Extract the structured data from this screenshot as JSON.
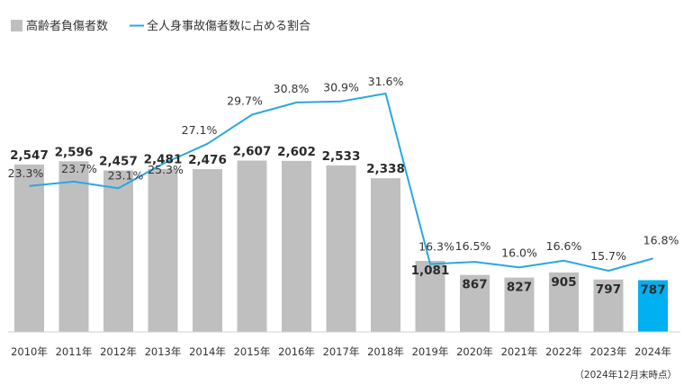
{
  "chart_data": {
    "type": "bar",
    "categories": [
      "2010年",
      "2011年",
      "2012年",
      "2013年",
      "2014年",
      "2015年",
      "2016年",
      "2017年",
      "2018年",
      "2019年",
      "2020年",
      "2021年",
      "2022年",
      "2023年",
      "2024年"
    ],
    "series": [
      {
        "name": "高齢者負傷者数",
        "type": "bar",
        "values": [
          2547,
          2596,
          2457,
          2481,
          2476,
          2607,
          2602,
          2533,
          2338,
          1081,
          867,
          827,
          905,
          797,
          787
        ],
        "labels": [
          "2,547",
          "2,596",
          "2,457",
          "2,481",
          "2,476",
          "2,607",
          "2,602",
          "2,533",
          "2,338",
          "1,081",
          "867",
          "827",
          "905",
          "797",
          "787"
        ],
        "color": "#bfbfbf",
        "highlight_color": "#00b0f0"
      },
      {
        "name": "全人身事故傷者数に占める割合",
        "type": "line",
        "values": [
          23.3,
          23.7,
          23.1,
          25.3,
          27.1,
          29.7,
          30.8,
          30.9,
          31.6,
          16.3,
          16.5,
          16.0,
          16.6,
          15.7,
          16.8
        ],
        "labels": [
          "23.3%",
          "23.7%",
          "23.1%",
          "25.3%",
          "27.1%",
          "29.7%",
          "30.8%",
          "30.9%",
          "31.6%",
          "16.3%",
          "16.5%",
          "16.0%",
          "16.6%",
          "15.7%",
          "16.8%"
        ],
        "color": "#29a8e0"
      }
    ],
    "note": "（2024年12月末時点）",
    "legend_position": "top-left",
    "grid": false
  }
}
